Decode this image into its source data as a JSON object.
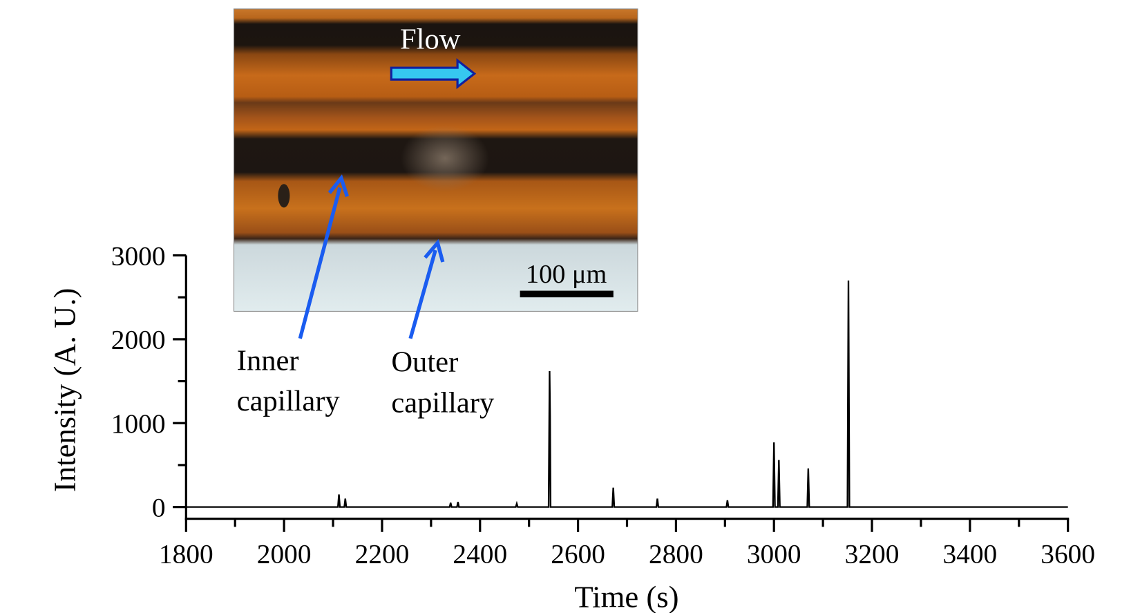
{
  "chart_data": {
    "type": "line",
    "x_label": "Time (s)",
    "y_label": "Intensity (A. U.)",
    "x": [
      1800,
      2110,
      2112,
      2114,
      2123,
      2125,
      2127,
      2338,
      2340,
      2342,
      2353,
      2355,
      2357,
      2473,
      2475,
      2477,
      2540,
      2542,
      2543,
      2544,
      2670,
      2672,
      2674,
      2760,
      2762,
      2764,
      2903,
      2905,
      2907,
      2998,
      3000,
      3002,
      3008,
      3010,
      3012,
      3068,
      3070,
      3072,
      3150,
      3152,
      3154,
      3600
    ],
    "values": [
      0,
      0,
      150,
      0,
      0,
      100,
      0,
      0,
      50,
      0,
      0,
      60,
      0,
      0,
      40,
      0,
      0,
      1620,
      1100,
      0,
      0,
      230,
      0,
      0,
      100,
      0,
      0,
      80,
      0,
      0,
      770,
      0,
      0,
      560,
      0,
      0,
      460,
      0,
      0,
      2700,
      0,
      0
    ],
    "color": "#000000",
    "xlim": [
      1800,
      3600
    ],
    "ylim": [
      -140,
      3000
    ],
    "xticks": [
      1800,
      2000,
      2200,
      2400,
      2600,
      2800,
      3000,
      3200,
      3400,
      3600
    ],
    "yticks": [
      0,
      1000,
      2000,
      3000
    ],
    "xminorticks": [
      1900,
      2100,
      2300,
      2500,
      2700,
      2900,
      3100,
      3300,
      3500
    ],
    "yminorticks": [
      500,
      1500,
      2500
    ],
    "annotations": {
      "flow": "Flow",
      "scale_bar": "100 μm",
      "inner": [
        "Inner",
        "capillary"
      ],
      "outer": [
        "Outer",
        "capillary"
      ]
    }
  }
}
